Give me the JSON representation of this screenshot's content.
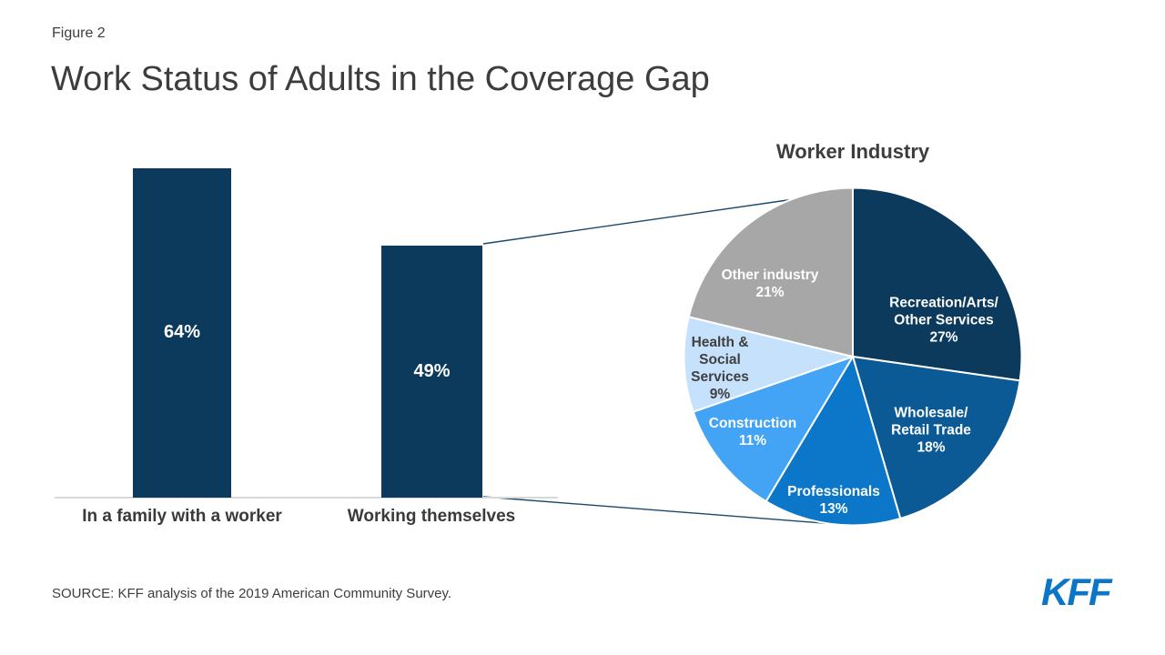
{
  "page": {
    "background": "#FFFFFF"
  },
  "header": {
    "figure_label": "Figure 2",
    "title": "Work Status of Adults in the Coverage Gap"
  },
  "footer": {
    "source": "SOURCE: KFF analysis of the 2019 American Community Survey.",
    "logo_text": "KFF"
  },
  "colors": {
    "bar": "#0B3A5C",
    "connector": "#17496F",
    "axis_line": "#D9D9D9",
    "logo_blue": "#0B76C8",
    "text_dark": "#3D3D3D"
  },
  "chart_data": [
    {
      "type": "bar",
      "title": "",
      "categories": [
        "In a family with a worker",
        "Working themselves"
      ],
      "values": [
        64,
        49
      ],
      "unit": "%",
      "value_label_color": "#FFFFFF",
      "bar_color": "#0B3A5C",
      "ylim": [
        0,
        70
      ],
      "grid": false,
      "axis_labels_shown": false
    },
    {
      "type": "pie",
      "title": "Worker Industry",
      "start_angle": "12-oclock",
      "direction": "clockwise",
      "unit": "%",
      "slices": [
        {
          "label": "Recreation/Arts/\nOther Services",
          "value": 27,
          "color": "#0B3A5C",
          "label_color": "#FFFFFF"
        },
        {
          "label": "Wholesale/\nRetail Trade",
          "value": 18,
          "color": "#0B5A96",
          "label_color": "#FFFFFF"
        },
        {
          "label": "Professionals",
          "value": 13,
          "color": "#0C77C8",
          "label_color": "#FFFFFF"
        },
        {
          "label": "Construction",
          "value": 11,
          "color": "#43A3F5",
          "label_color": "#FFFFFF"
        },
        {
          "label": "Health &\nSocial\nServices",
          "value": 9,
          "color": "#C6E1FB",
          "label_color": "#404040"
        },
        {
          "label": "Other industry",
          "value": 21,
          "color": "#A7A7A7",
          "label_color": "#FFFFFF"
        }
      ]
    }
  ]
}
